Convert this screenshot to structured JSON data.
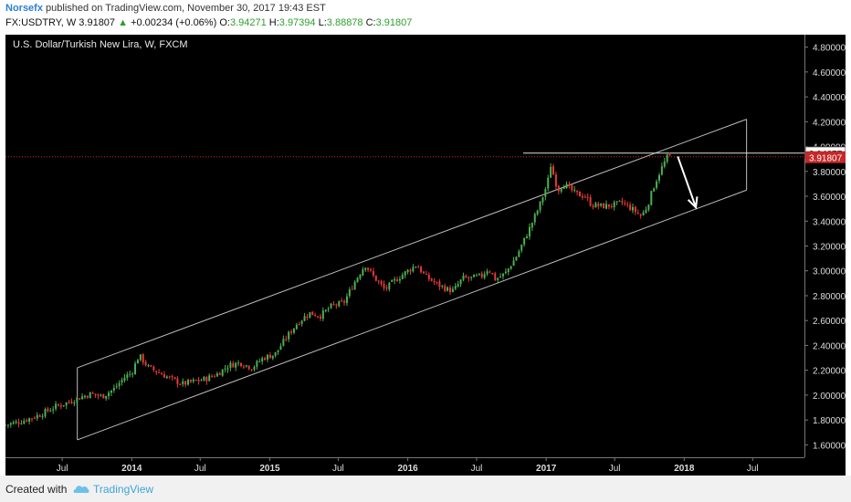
{
  "header": {
    "author": "Norsefx",
    "published_text": "published on TradingView.com, November 30, 2017 19:43 EST",
    "symbol": "FX:USDTRY, W",
    "last": "3.91807",
    "change": "+0.00234 (+0.06%)",
    "o_label": "O:",
    "o": "3.94271",
    "h_label": "H:",
    "h": "3.97394",
    "l_label": "L:",
    "l": "3.88878",
    "c_label": "C:",
    "c": "3.91807"
  },
  "chart_title": "U.S. Dollar/Turkish New Lira, W, FXCM",
  "footer": {
    "created_with": "Created with",
    "brand": "TradingView"
  },
  "colors": {
    "up": "#4caf50",
    "down": "#e53935",
    "channel": "#bdbdbd",
    "price_line": "#c62828",
    "background": "#000000"
  },
  "chart_data": {
    "type": "candlestick",
    "y_ticks": [
      "4.80000",
      "4.60000",
      "4.40000",
      "4.20000",
      "4.00000",
      "3.80000",
      "3.60000",
      "3.40000",
      "3.20000",
      "3.00000",
      "2.80000",
      "2.60000",
      "2.40000",
      "2.20000",
      "2.00000",
      "1.80000",
      "1.60000"
    ],
    "x_ticks": [
      "Jul",
      "2014",
      "Jul",
      "2015",
      "Jul",
      "2016",
      "Jul",
      "2017",
      "Jul",
      "2018",
      "Jul"
    ],
    "ylim": [
      1.5,
      4.9
    ],
    "xlim": [
      "2013-02-01",
      "2018-11-15"
    ],
    "price_labels": {
      "current": "3.91807",
      "horizontal_level": "3.94677"
    },
    "close_path": [
      [
        "2013-02-01",
        1.76
      ],
      [
        "2013-03-15",
        1.79
      ],
      [
        "2013-05-01",
        1.84
      ],
      [
        "2013-06-15",
        1.91
      ],
      [
        "2013-07-15",
        1.94
      ],
      [
        "2013-08-15",
        1.98
      ],
      [
        "2013-09-15",
        2.01
      ],
      [
        "2013-10-15",
        1.99
      ],
      [
        "2013-11-15",
        2.05
      ],
      [
        "2013-12-15",
        2.15
      ],
      [
        "2014-01-01",
        2.18
      ],
      [
        "2014-01-20",
        2.32
      ],
      [
        "2014-02-15",
        2.22
      ],
      [
        "2014-03-15",
        2.18
      ],
      [
        "2014-04-15",
        2.13
      ],
      [
        "2014-05-15",
        2.09
      ],
      [
        "2014-06-15",
        2.11
      ],
      [
        "2014-07-15",
        2.13
      ],
      [
        "2014-08-15",
        2.17
      ],
      [
        "2014-09-15",
        2.24
      ],
      [
        "2014-10-15",
        2.26
      ],
      [
        "2014-11-15",
        2.22
      ],
      [
        "2014-12-15",
        2.3
      ],
      [
        "2015-01-15",
        2.33
      ],
      [
        "2015-02-15",
        2.47
      ],
      [
        "2015-03-15",
        2.58
      ],
      [
        "2015-04-15",
        2.66
      ],
      [
        "2015-05-15",
        2.64
      ],
      [
        "2015-06-15",
        2.72
      ],
      [
        "2015-07-15",
        2.74
      ],
      [
        "2015-08-15",
        2.92
      ],
      [
        "2015-09-10",
        3.05
      ],
      [
        "2015-10-01",
        2.96
      ],
      [
        "2015-11-01",
        2.85
      ],
      [
        "2015-12-01",
        2.93
      ],
      [
        "2016-01-01",
        3.0
      ],
      [
        "2016-01-25",
        3.05
      ],
      [
        "2016-02-15",
        2.96
      ],
      [
        "2016-03-15",
        2.9
      ],
      [
        "2016-04-15",
        2.85
      ],
      [
        "2016-05-01",
        2.84
      ],
      [
        "2016-05-25",
        2.94
      ],
      [
        "2016-06-15",
        2.94
      ],
      [
        "2016-07-15",
        2.96
      ],
      [
        "2016-08-01",
        3.02
      ],
      [
        "2016-08-20",
        2.93
      ],
      [
        "2016-09-15",
        2.98
      ],
      [
        "2016-10-15",
        3.12
      ],
      [
        "2016-11-15",
        3.32
      ],
      [
        "2016-12-15",
        3.53
      ],
      [
        "2017-01-05",
        3.71
      ],
      [
        "2017-01-12",
        3.86
      ],
      [
        "2017-02-01",
        3.65
      ],
      [
        "2017-02-15",
        3.7
      ],
      [
        "2017-03-05",
        3.66
      ],
      [
        "2017-03-20",
        3.62
      ],
      [
        "2017-04-15",
        3.6
      ],
      [
        "2017-05-01",
        3.53
      ],
      [
        "2017-06-01",
        3.52
      ],
      [
        "2017-07-01",
        3.53
      ],
      [
        "2017-07-20",
        3.55
      ],
      [
        "2017-08-15",
        3.5
      ],
      [
        "2017-09-10",
        3.44
      ],
      [
        "2017-09-25",
        3.52
      ],
      [
        "2017-10-15",
        3.7
      ],
      [
        "2017-11-01",
        3.82
      ],
      [
        "2017-11-20",
        3.93
      ],
      [
        "2017-11-30",
        3.92
      ]
    ],
    "channel": {
      "lower": [
        [
          "2013-08-10",
          1.64
        ],
        [
          "2018-06-15",
          3.65
        ]
      ],
      "upper": [
        [
          "2013-08-10",
          2.22
        ],
        [
          "2018-06-15",
          4.22
        ]
      ]
    },
    "horizontal_level": {
      "from": "2016-11-01",
      "to": "2018-11-15",
      "y": 3.94677
    },
    "projection_arrow": {
      "from": [
        "2017-12-15",
        3.92
      ],
      "to": [
        "2018-02-01",
        3.51
      ]
    }
  }
}
